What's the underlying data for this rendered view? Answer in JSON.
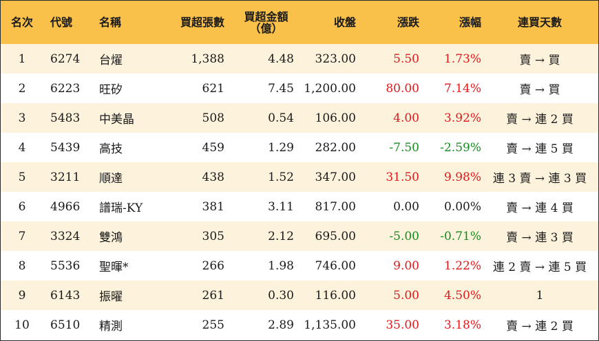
{
  "headers": {
    "rank": "名次",
    "code": "代號",
    "name": "名稱",
    "net_buy_lots": "買超張數",
    "net_buy_amount_line1": "買超金額",
    "net_buy_amount_line2": "（億）",
    "close": "收盤",
    "change": "漲跌",
    "change_pct": "漲幅",
    "consecutive": "連買天數"
  },
  "rows": [
    {
      "rank": "1",
      "code": "6274",
      "name": "台燿",
      "lots": "1,388",
      "amount": "4.48",
      "close": "323.00",
      "change": "5.50",
      "pct": "1.73%",
      "trend": "up",
      "streak": "賣 → 買"
    },
    {
      "rank": "2",
      "code": "6223",
      "name": "旺矽",
      "lots": "621",
      "amount": "7.45",
      "close": "1,200.00",
      "change": "80.00",
      "pct": "7.14%",
      "trend": "up",
      "streak": "賣 → 買"
    },
    {
      "rank": "3",
      "code": "5483",
      "name": "中美晶",
      "lots": "508",
      "amount": "0.54",
      "close": "106.00",
      "change": "4.00",
      "pct": "3.92%",
      "trend": "up",
      "streak": "賣 → 連 2 買"
    },
    {
      "rank": "4",
      "code": "5439",
      "name": "高技",
      "lots": "459",
      "amount": "1.29",
      "close": "282.00",
      "change": "-7.50",
      "pct": "-2.59%",
      "trend": "down",
      "streak": "賣 → 連 5 買"
    },
    {
      "rank": "5",
      "code": "3211",
      "name": "順達",
      "lots": "438",
      "amount": "1.52",
      "close": "347.00",
      "change": "31.50",
      "pct": "9.98%",
      "trend": "up",
      "streak": "連 3 賣 → 連 3 買"
    },
    {
      "rank": "6",
      "code": "4966",
      "name": "譜瑞-KY",
      "lots": "381",
      "amount": "3.11",
      "close": "817.00",
      "change": "0.00",
      "pct": "0.00%",
      "trend": "zero",
      "streak": "賣 → 連 4 買"
    },
    {
      "rank": "7",
      "code": "3324",
      "name": "雙鴻",
      "lots": "305",
      "amount": "2.12",
      "close": "695.00",
      "change": "-5.00",
      "pct": "-0.71%",
      "trend": "down",
      "streak": "賣 → 連 3 買"
    },
    {
      "rank": "8",
      "code": "5536",
      "name": "聖暉*",
      "lots": "266",
      "amount": "1.98",
      "close": "746.00",
      "change": "9.00",
      "pct": "1.22%",
      "trend": "up",
      "streak": "連 2 賣 → 連 5 買"
    },
    {
      "rank": "9",
      "code": "6143",
      "name": "振曜",
      "lots": "261",
      "amount": "0.30",
      "close": "116.00",
      "change": "5.00",
      "pct": "4.50%",
      "trend": "up",
      "streak": "1"
    },
    {
      "rank": "10",
      "code": "6510",
      "name": "精測",
      "lots": "255",
      "amount": "2.89",
      "close": "1,135.00",
      "change": "35.00",
      "pct": "3.18%",
      "trend": "up",
      "streak": "賣 → 連 2 買"
    }
  ],
  "colors": {
    "header_bg": "#f9c04a",
    "row_odd_bg": "#fdf3dd",
    "row_even_bg": "#ffffff",
    "up": "#e0181b",
    "down": "#158a1c"
  }
}
